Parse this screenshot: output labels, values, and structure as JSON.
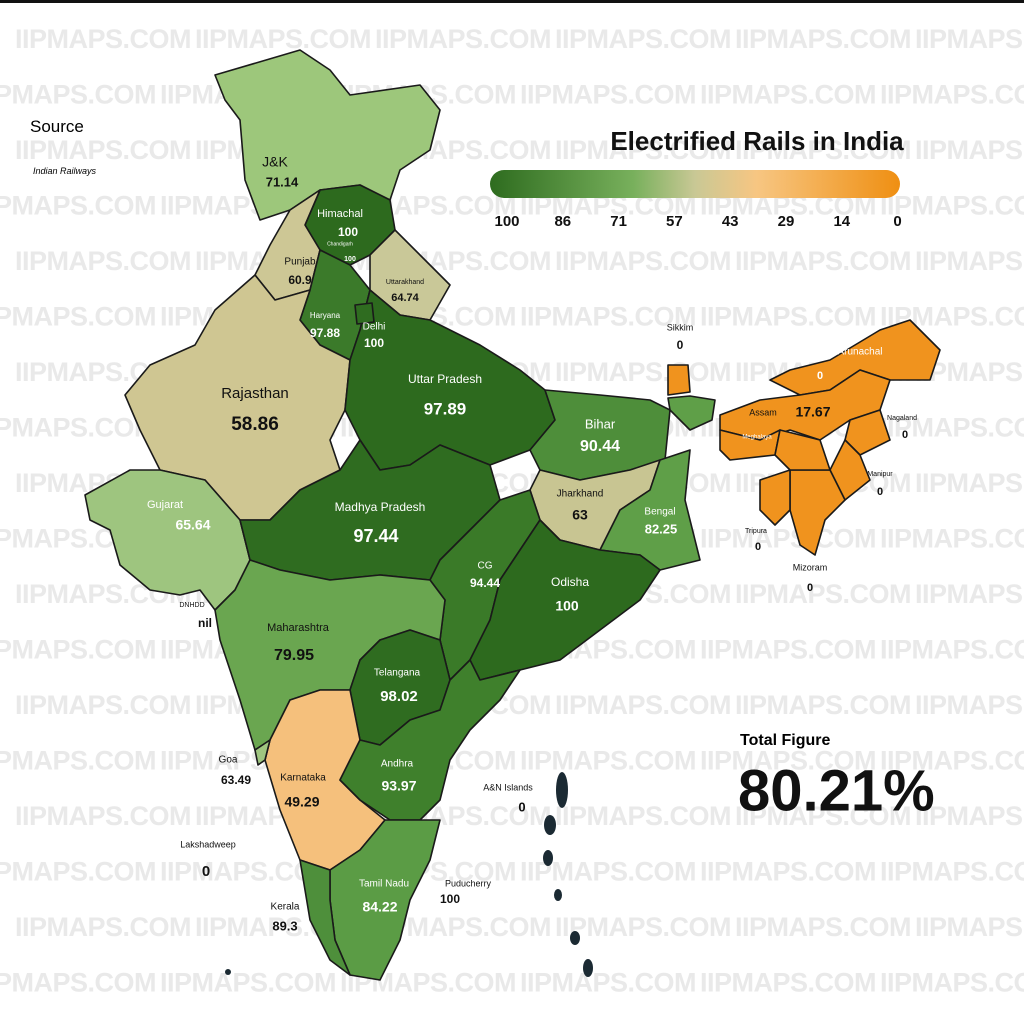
{
  "title": "Electrified Rails in India",
  "source": {
    "label": "Source",
    "name": "Indian Railways"
  },
  "legend": {
    "ticks": [
      "100",
      "86",
      "71",
      "57",
      "43",
      "29",
      "14",
      "0"
    ]
  },
  "regions": [
    {
      "name": "J&K",
      "value": "71.14"
    },
    {
      "name": "Himachal",
      "value": "100"
    },
    {
      "name": "Chandigarh",
      "value": "100"
    },
    {
      "name": "Punjab",
      "value": "60.9"
    },
    {
      "name": "Uttarakhand",
      "value": "64.74"
    },
    {
      "name": "Haryana",
      "value": "97.88"
    },
    {
      "name": "Delhi",
      "value": "100"
    },
    {
      "name": "Rajasthan",
      "value": "58.86"
    },
    {
      "name": "Uttar Pradesh",
      "value": "97.89"
    },
    {
      "name": "Bihar",
      "value": "90.44"
    },
    {
      "name": "Sikkim",
      "value": "0"
    },
    {
      "name": "Arunachal",
      "value": "0"
    },
    {
      "name": "Assam",
      "value": "17.67"
    },
    {
      "name": "Meghalaya",
      "value": "0"
    },
    {
      "name": "Nagaland",
      "value": "0"
    },
    {
      "name": "Manipur",
      "value": "0"
    },
    {
      "name": "Tripura",
      "value": "0"
    },
    {
      "name": "Mizoram",
      "value": "0"
    },
    {
      "name": "Jharkhand",
      "value": "63"
    },
    {
      "name": "Bengal",
      "value": "82.25"
    },
    {
      "name": "Gujarat",
      "value": "65.64"
    },
    {
      "name": "Madhya Pradesh",
      "value": "97.44"
    },
    {
      "name": "CG",
      "value": "94.44"
    },
    {
      "name": "Odisha",
      "value": "100"
    },
    {
      "name": "DNHDD",
      "value": "nil"
    },
    {
      "name": "Maharashtra",
      "value": "79.95"
    },
    {
      "name": "Telangana",
      "value": "98.02"
    },
    {
      "name": "Goa",
      "value": "63.49"
    },
    {
      "name": "Karnataka",
      "value": "49.29"
    },
    {
      "name": "Andhra",
      "value": "93.97"
    },
    {
      "name": "A&N Islands",
      "value": "0"
    },
    {
      "name": "Lakshadweep",
      "value": "0"
    },
    {
      "name": "Tamil Nadu",
      "value": "84.22"
    },
    {
      "name": "Puducherry",
      "value": "100"
    },
    {
      "name": "Kerala",
      "value": "89.3"
    }
  ],
  "total": {
    "label": "Total Figure",
    "value": "80.21%"
  },
  "watermark": "IIPMAPS.COM"
}
